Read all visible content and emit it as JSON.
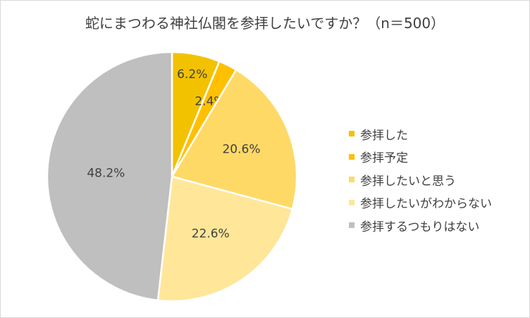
{
  "chart_data": {
    "type": "pie",
    "title": "蛇にまつわる神社仏閣を参拝したいですか？（n＝500）",
    "categories": [
      "参拝した",
      "参拝予定",
      "参拝したいと思う",
      "参拝したいがわからない",
      "参拝するつもりはない"
    ],
    "values": [
      6.2,
      2.4,
      20.6,
      22.6,
      48.2
    ],
    "labels": [
      "6.2%",
      "2.4%",
      "20.6%",
      "22.6%",
      "48.2%"
    ],
    "colors": [
      "#F2C200",
      "#FFC000",
      "#FFD966",
      "#FFE699",
      "#BFBFBF"
    ],
    "legend": "right"
  }
}
